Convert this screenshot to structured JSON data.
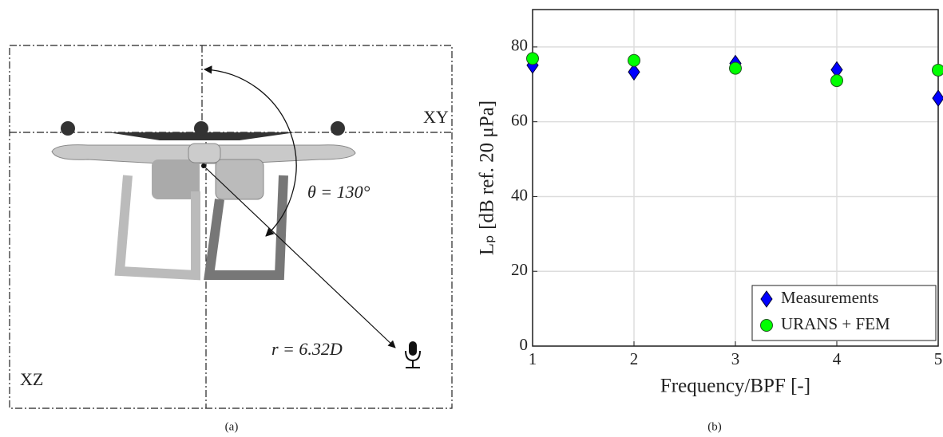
{
  "diagram": {
    "plane_xy": "XY",
    "plane_xz": "XZ",
    "angle_label": "θ = 130°",
    "radius_label": "r = 6.32D"
  },
  "captions": [
    "(a)",
    "(b)"
  ],
  "chart_data": {
    "type": "scatter",
    "xlabel": "Frequency/BPF [-]",
    "ylabel": "Lₚ [dB ref. 20 μPa]",
    "x": [
      1,
      2,
      3,
      4,
      5
    ],
    "series": [
      {
        "name": "Measurements",
        "color": "#0000ff",
        "marker": "diamond",
        "values": [
          75.1,
          73.3,
          75.6,
          73.9,
          66.3
        ]
      },
      {
        "name": "URANS + FEM",
        "color": "#00ff00",
        "marker": "circle",
        "values": [
          76.9,
          76.4,
          74.3,
          71.0,
          73.8
        ]
      }
    ],
    "xlim": [
      1,
      5
    ],
    "xticks": [
      1,
      2,
      3,
      4,
      5
    ],
    "ylim": [
      0,
      90
    ],
    "yticks": [
      0,
      20,
      40,
      60,
      80
    ],
    "grid": true,
    "legend": "lower right"
  }
}
